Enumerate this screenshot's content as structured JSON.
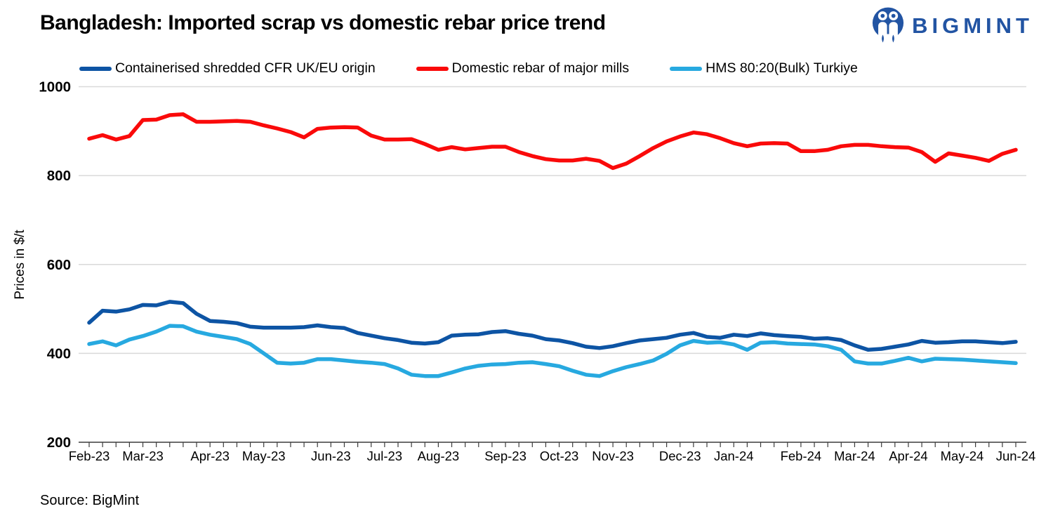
{
  "header": {
    "title": "Bangladesh: Imported scrap vs domestic rebar price trend",
    "logo_text": "BIGMINT",
    "brand_color": "#2254a3"
  },
  "footer": {
    "source": "Source: BigMint"
  },
  "chart_data": {
    "type": "line",
    "title": "Bangladesh: Imported scrap vs domestic rebar price trend",
    "xlabel": "",
    "ylabel": "Prices in $/t",
    "ylim": [
      200,
      1000
    ],
    "yticks": [
      200,
      400,
      600,
      800,
      1000
    ],
    "grid": "horizontal-only",
    "legend_position": "top",
    "x_tick_labels": [
      "Feb-23",
      "Mar-23",
      "Apr-23",
      "May-23",
      "Jun-23",
      "Jul-23",
      "Aug-23",
      "Sep-23",
      "Oct-23",
      "Nov-23",
      "Dec-23",
      "Jan-24",
      "Feb-24",
      "Mar-24",
      "Apr-24",
      "May-24",
      "Jun-24"
    ],
    "x_tick_indices": [
      0,
      4,
      9,
      13,
      18,
      22,
      26,
      31,
      35,
      39,
      44,
      48,
      53,
      57,
      61,
      65,
      69
    ],
    "n_points": 70,
    "frequency": "weekly",
    "series": [
      {
        "name": "Containerised shredded CFR UK/EU origin",
        "color": "#0d54a4",
        "values": [
          469,
          496,
          494,
          499,
          509,
          508,
          516,
          513,
          489,
          473,
          471,
          468,
          460,
          458,
          458,
          458,
          459,
          463,
          459,
          457,
          446,
          440,
          434,
          430,
          424,
          422,
          425,
          440,
          442,
          443,
          448,
          450,
          444,
          440,
          432,
          429,
          423,
          415,
          412,
          416,
          423,
          429,
          432,
          435,
          442,
          446,
          437,
          435,
          442,
          439,
          445,
          441,
          439,
          437,
          433,
          434,
          430,
          418,
          408,
          410,
          415,
          420,
          428,
          424,
          425,
          427,
          427,
          425,
          423,
          426
        ]
      },
      {
        "name": "Domestic rebar of major mills",
        "color": "#fa0a0a",
        "values": [
          883,
          891,
          881,
          889,
          925,
          926,
          936,
          938,
          921,
          921,
          922,
          923,
          921,
          913,
          906,
          898,
          886,
          905,
          908,
          909,
          908,
          890,
          881,
          881,
          882,
          871,
          858,
          864,
          859,
          862,
          865,
          865,
          853,
          844,
          837,
          834,
          834,
          838,
          833,
          817,
          827,
          844,
          862,
          877,
          888,
          897,
          893,
          884,
          873,
          866,
          872,
          873,
          872,
          855,
          855,
          858,
          866,
          869,
          869,
          866,
          864,
          863,
          853,
          831,
          850,
          845,
          840,
          833,
          849,
          858
        ]
      },
      {
        "name": "HMS 80:20(Bulk) Turkiye",
        "color": "#27a9e0",
        "values": [
          421,
          427,
          418,
          431,
          439,
          449,
          462,
          461,
          449,
          442,
          437,
          432,
          421,
          400,
          379,
          377,
          379,
          387,
          387,
          384,
          381,
          379,
          376,
          366,
          352,
          349,
          349,
          357,
          366,
          372,
          375,
          376,
          379,
          380,
          376,
          371,
          361,
          352,
          349,
          360,
          369,
          376,
          384,
          399,
          418,
          428,
          424,
          425,
          420,
          408,
          424,
          425,
          422,
          421,
          420,
          416,
          408,
          382,
          377,
          377,
          383,
          390,
          382,
          388,
          387,
          386,
          384,
          382,
          380,
          378
        ]
      }
    ]
  }
}
